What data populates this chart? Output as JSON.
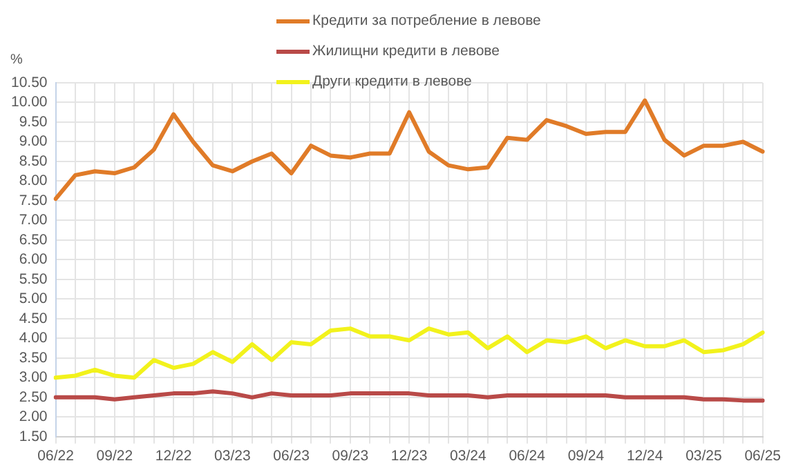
{
  "chart_data": {
    "type": "line",
    "ylabel": "%",
    "categories": [
      "06/22",
      null,
      null,
      "09/22",
      null,
      null,
      "12/22",
      null,
      null,
      "03/23",
      null,
      null,
      "06/23",
      null,
      null,
      "09/23",
      null,
      null,
      "12/23",
      null,
      null,
      "03/24",
      null,
      null,
      "06/24",
      null,
      null,
      "09/24",
      null,
      null,
      "12/24",
      null,
      null,
      "03/25",
      null,
      null,
      "06/25"
    ],
    "series": [
      {
        "name": "Кредити за потребление в левове",
        "color": "#e07b28",
        "values": [
          7.55,
          8.15,
          8.25,
          8.2,
          8.35,
          8.8,
          9.7,
          9.0,
          8.4,
          8.25,
          8.5,
          8.7,
          8.2,
          8.9,
          8.65,
          8.6,
          8.7,
          8.7,
          9.75,
          8.75,
          8.4,
          8.3,
          8.35,
          9.1,
          9.05,
          9.55,
          9.4,
          9.2,
          9.25,
          9.25,
          10.05,
          9.05,
          8.65,
          8.9,
          8.9,
          9.0,
          8.75
        ]
      },
      {
        "name": "Жилищни кредити в левове",
        "color": "#b94a48",
        "values": [
          2.5,
          2.5,
          2.5,
          2.45,
          2.5,
          2.55,
          2.6,
          2.6,
          2.65,
          2.6,
          2.5,
          2.6,
          2.55,
          2.55,
          2.55,
          2.6,
          2.6,
          2.6,
          2.6,
          2.55,
          2.55,
          2.55,
          2.5,
          2.55,
          2.55,
          2.55,
          2.55,
          2.55,
          2.55,
          2.5,
          2.5,
          2.5,
          2.5,
          2.45,
          2.45,
          2.42,
          2.42
        ]
      },
      {
        "name": "Други кредити в левове",
        "color": "#f2f21c",
        "values": [
          3.0,
          3.05,
          3.2,
          3.05,
          3.0,
          3.45,
          3.25,
          3.35,
          3.65,
          3.4,
          3.85,
          3.45,
          3.9,
          3.85,
          4.2,
          4.25,
          4.05,
          4.05,
          3.95,
          4.25,
          4.1,
          4.15,
          3.75,
          4.05,
          3.65,
          3.95,
          3.9,
          4.05,
          3.75,
          3.95,
          3.8,
          3.8,
          3.95,
          3.65,
          3.7,
          3.85,
          4.15
        ]
      }
    ],
    "ylim": [
      1.5,
      10.5
    ],
    "yticks": [
      {
        "value": 1.5,
        "label": "1.50"
      },
      {
        "value": 2,
        "label": "2.00"
      },
      {
        "value": 2.5,
        "label": "2.50"
      },
      {
        "value": 3,
        "label": "3.00"
      },
      {
        "value": 3.5,
        "label": "3.50"
      },
      {
        "value": 4,
        "label": "4.00"
      },
      {
        "value": 4.5,
        "label": "4.50"
      },
      {
        "value": 5,
        "label": "5.00"
      },
      {
        "value": 5.5,
        "label": "5.50"
      },
      {
        "value": 6,
        "label": "6.00"
      },
      {
        "value": 6.5,
        "label": "6.50"
      },
      {
        "value": 7,
        "label": "7.00"
      },
      {
        "value": 7.5,
        "label": "7.50"
      },
      {
        "value": 8,
        "label": "8.00"
      },
      {
        "value": 8.5,
        "label": "8.50"
      },
      {
        "value": 9,
        "label": "9.00"
      },
      {
        "value": 9.5,
        "label": "9.50"
      },
      {
        "value": 10,
        "label": "10.00"
      },
      {
        "value": 10.5,
        "label": "10.50"
      }
    ],
    "grid": true,
    "legend": "top",
    "marker": "none",
    "line_style": "solid"
  }
}
